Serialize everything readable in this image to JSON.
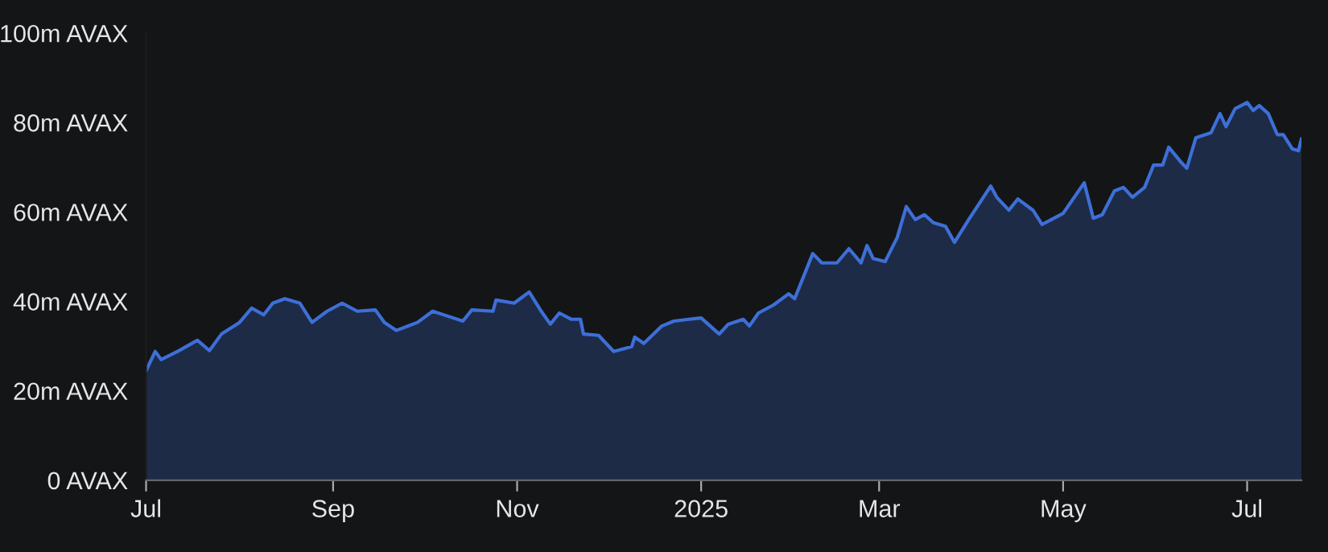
{
  "chart_data": {
    "type": "area",
    "x": [
      "2024-07-01",
      "2024-07-04",
      "2024-07-06",
      "2024-07-12",
      "2024-07-18",
      "2024-07-22",
      "2024-07-26",
      "2024-08-01",
      "2024-08-05",
      "2024-08-09",
      "2024-08-12",
      "2024-08-16",
      "2024-08-21",
      "2024-08-25",
      "2024-08-30",
      "2024-09-04",
      "2024-09-09",
      "2024-09-15",
      "2024-09-18",
      "2024-09-22",
      "2024-09-29",
      "2024-10-04",
      "2024-10-09",
      "2024-10-14",
      "2024-10-17",
      "2024-10-24",
      "2024-10-25",
      "2024-10-31",
      "2024-11-05",
      "2024-11-09",
      "2024-11-12",
      "2024-11-15",
      "2024-11-19",
      "2024-11-22",
      "2024-11-23",
      "2024-11-28",
      "2024-12-03",
      "2024-12-09",
      "2024-12-10",
      "2024-12-13",
      "2024-12-19",
      "2024-12-23",
      "2024-12-28",
      "2025-01-01",
      "2025-01-07",
      "2025-01-10",
      "2025-01-15",
      "2025-01-17",
      "2025-01-20",
      "2025-01-25",
      "2025-01-30",
      "2025-02-01",
      "2025-02-07",
      "2025-02-10",
      "2025-02-15",
      "2025-02-19",
      "2025-02-23",
      "2025-02-25",
      "2025-02-27",
      "2025-03-03",
      "2025-03-07",
      "2025-03-10",
      "2025-03-13",
      "2025-03-16",
      "2025-03-19",
      "2025-03-23",
      "2025-03-26",
      "2025-03-31",
      "2025-04-07",
      "2025-04-09",
      "2025-04-13",
      "2025-04-16",
      "2025-04-21",
      "2025-04-24",
      "2025-05-01",
      "2025-05-08",
      "2025-05-11",
      "2025-05-14",
      "2025-05-18",
      "2025-05-21",
      "2025-05-24",
      "2025-05-28",
      "2025-05-31",
      "2025-06-03",
      "2025-06-05",
      "2025-06-09",
      "2025-06-11",
      "2025-06-14",
      "2025-06-19",
      "2025-06-22",
      "2025-06-24",
      "2025-06-27",
      "2025-07-01",
      "2025-07-03",
      "2025-07-05",
      "2025-07-08",
      "2025-07-11",
      "2025-07-13",
      "2025-07-16",
      "2025-07-18",
      "2025-07-19"
    ],
    "series": [
      {
        "color": "#3d6fd8",
        "values": [
          24.5,
          28.8,
          27,
          29,
          31.3,
          29,
          32.7,
          35.3,
          38.5,
          37,
          39.6,
          40.6,
          39.6,
          35.3,
          37.8,
          39.6,
          37.8,
          38.1,
          35.3,
          33.5,
          35.3,
          37.8,
          36.7,
          35.6,
          38.1,
          37.8,
          40.3,
          39.6,
          42.1,
          37.8,
          34.9,
          37.4,
          36,
          36,
          32.7,
          32.4,
          28.8,
          29.9,
          32,
          30.6,
          34.5,
          35.6,
          36,
          36.3,
          32.7,
          34.9,
          36,
          34.5,
          37.4,
          39.2,
          41.7,
          40.6,
          50.7,
          48.6,
          48.6,
          51.8,
          48.6,
          52.5,
          49.6,
          48.9,
          54.3,
          61.2,
          58.3,
          59.4,
          57.6,
          56.8,
          53.2,
          58.6,
          65.8,
          63.3,
          60.4,
          62.9,
          60.4,
          57.2,
          59.7,
          66.5,
          58.6,
          59.4,
          64.7,
          65.5,
          63.3,
          65.5,
          70.5,
          70.5,
          74.5,
          71.2,
          69.8,
          76.6,
          77.7,
          82,
          79.1,
          83.1,
          84.5,
          82.7,
          83.8,
          82,
          77.3,
          77.3,
          74.1,
          73.7,
          76.3
        ]
      }
    ],
    "xlim": [
      "2024-07-01",
      "2025-07-19"
    ],
    "xticks": [
      {
        "value": "2024-07-01",
        "label": "Jul"
      },
      {
        "value": "2024-09-01",
        "label": "Sep"
      },
      {
        "value": "2024-11-01",
        "label": "Nov"
      },
      {
        "value": "2025-01-01",
        "label": "2025"
      },
      {
        "value": "2025-03-01",
        "label": "Mar"
      },
      {
        "value": "2025-05-01",
        "label": "May"
      },
      {
        "value": "2025-07-01",
        "label": "Jul"
      }
    ],
    "ylim": [
      0,
      100
    ],
    "yticks": [
      {
        "value": 0,
        "label": "0 AVAX"
      },
      {
        "value": 20,
        "label": "20m AVAX"
      },
      {
        "value": 40,
        "label": "40m AVAX"
      },
      {
        "value": 60,
        "label": "60m AVAX"
      },
      {
        "value": 80,
        "label": "80m AVAX"
      },
      {
        "value": 100,
        "label": "100m AVAX"
      }
    ],
    "grid": false
  }
}
